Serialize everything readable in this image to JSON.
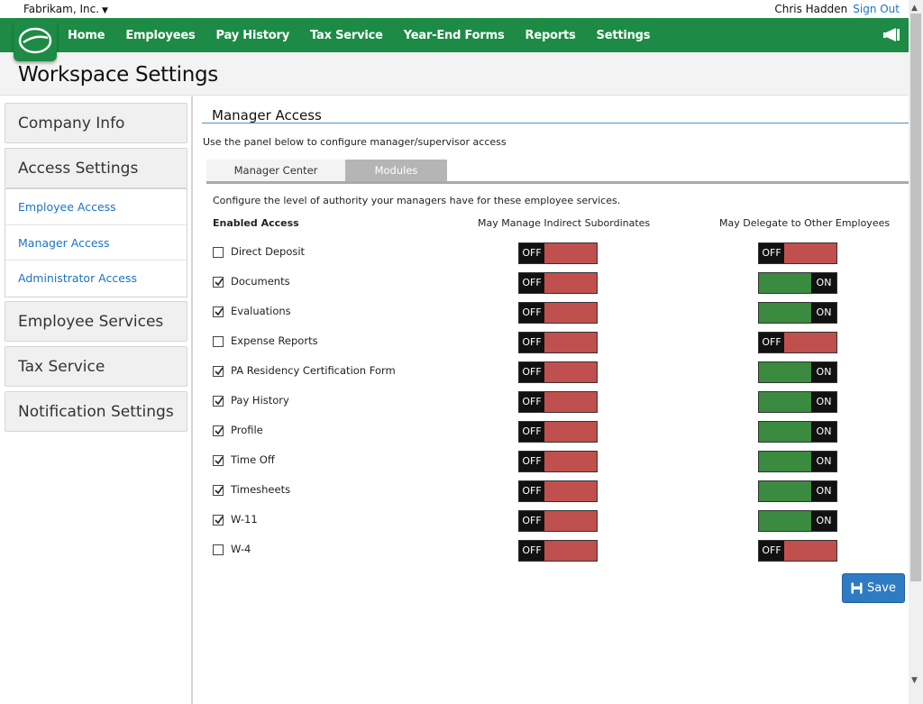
{
  "topbar": {
    "company": "Fabrikam, Inc.",
    "user_name": "Chris Hadden",
    "sign_out": "Sign Out"
  },
  "nav": {
    "items": [
      "Home",
      "Employees",
      "Pay History",
      "Tax Service",
      "Year-End Forms",
      "Reports",
      "Settings"
    ],
    "brand_color": "#1d8b45"
  },
  "page": {
    "title": "Workspace Settings"
  },
  "sidebar": {
    "company_info": "Company Info",
    "access_settings": "Access Settings",
    "sub_items": [
      "Employee Access",
      "Manager Access",
      "Administrator Access"
    ],
    "employee_services": "Employee Services",
    "tax_service": "Tax Service",
    "notification_settings": "Notification Settings"
  },
  "main": {
    "section_title": "Manager Access",
    "description": "Use the panel below to configure manager/supervisor access",
    "tabs": [
      "Manager Center",
      "Modules"
    ],
    "active_tab": "Modules",
    "config_text": "Configure the level of authority your managers have for these employee services.",
    "col_enabled": "Enabled Access",
    "col_indirect": "May Manage Indirect Subordinates",
    "col_delegate": "May Delegate to Other Employees",
    "rows": [
      {
        "label": "Direct Deposit",
        "enabled": false,
        "indirect": "OFF",
        "delegate": "OFF"
      },
      {
        "label": "Documents",
        "enabled": true,
        "indirect": "OFF",
        "delegate": "ON"
      },
      {
        "label": "Evaluations",
        "enabled": true,
        "indirect": "OFF",
        "delegate": "ON"
      },
      {
        "label": "Expense Reports",
        "enabled": false,
        "indirect": "OFF",
        "delegate": "OFF"
      },
      {
        "label": "PA Residency Certification Form",
        "enabled": true,
        "indirect": "OFF",
        "delegate": "ON"
      },
      {
        "label": "Pay History",
        "enabled": true,
        "indirect": "OFF",
        "delegate": "ON"
      },
      {
        "label": "Profile",
        "enabled": true,
        "indirect": "OFF",
        "delegate": "ON"
      },
      {
        "label": "Time Off",
        "enabled": true,
        "indirect": "OFF",
        "delegate": "ON"
      },
      {
        "label": "Timesheets",
        "enabled": true,
        "indirect": "OFF",
        "delegate": "ON"
      },
      {
        "label": "W-11",
        "enabled": true,
        "indirect": "OFF",
        "delegate": "ON"
      },
      {
        "label": "W-4",
        "enabled": false,
        "indirect": "OFF",
        "delegate": "OFF"
      }
    ],
    "save_label": "Save"
  }
}
